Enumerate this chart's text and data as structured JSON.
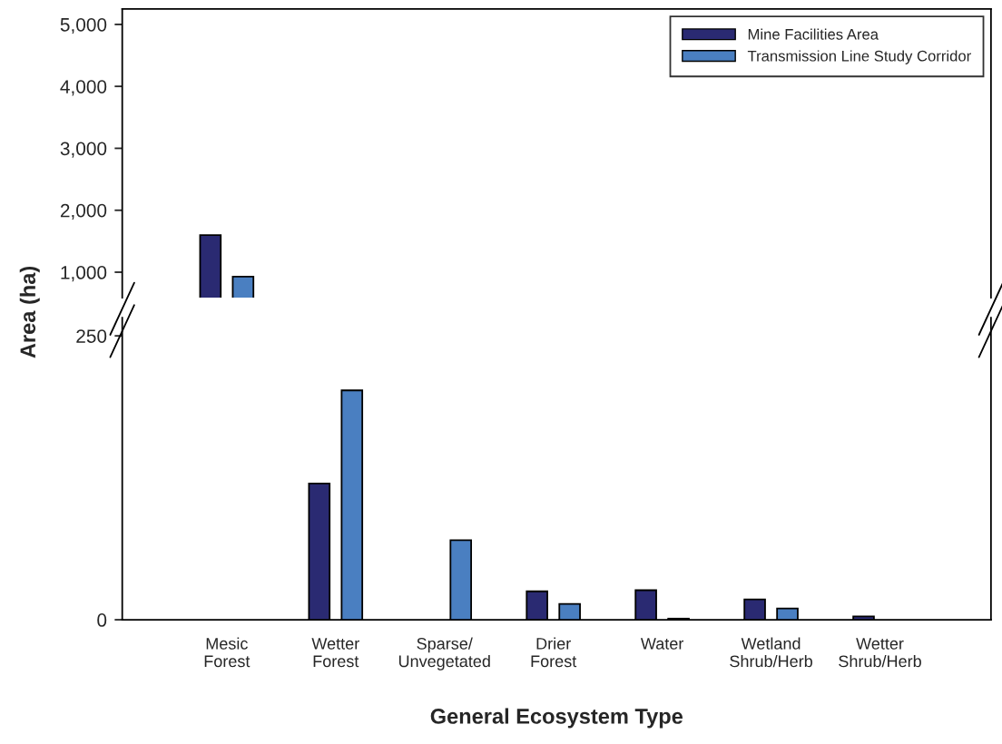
{
  "chart_data": [
    {
      "type": "bar",
      "ylabel": "Area (ha)",
      "series": [
        {
          "name": "Mine Facilities Area",
          "color": "#2a2a72",
          "values": [
            1600,
            null,
            null,
            null,
            null,
            null,
            null
          ]
        },
        {
          "name": "Transmission Line Study Corridor",
          "color": "#4a7fc1",
          "values": [
            930,
            null,
            null,
            null,
            null,
            null,
            null
          ]
        }
      ],
      "ylim": [
        590,
        5250
      ],
      "yticks": [
        {
          "value": 1000,
          "label": "1,000"
        },
        {
          "value": 2000,
          "label": "2,000"
        },
        {
          "value": 3000,
          "label": "3,000"
        },
        {
          "value": 4000,
          "label": "4,000"
        },
        {
          "value": 5000,
          "label": "5,000"
        }
      ],
      "tick_labels": "y",
      "legend": "top right"
    },
    {
      "type": "bar",
      "xlabel": "General Ecosystem Type",
      "categories": [
        "Mesic\nForest",
        "Wetter\nForest",
        "Sparse/\nUnvegetated",
        "Drier\nForest",
        "Water",
        "Wetland\nShrub/Herb",
        "Wetter\nShrub/Herb"
      ],
      "series": [
        {
          "color": "#2a2a72",
          "values": [
            null,
            120,
            null,
            25,
            26,
            18,
            3
          ]
        },
        {
          "color": "#4a7fc1",
          "values": [
            null,
            202,
            70,
            14,
            1,
            10,
            null
          ]
        }
      ],
      "ylim": [
        0,
        266
      ],
      "yticks": [
        0,
        250
      ]
    }
  ]
}
